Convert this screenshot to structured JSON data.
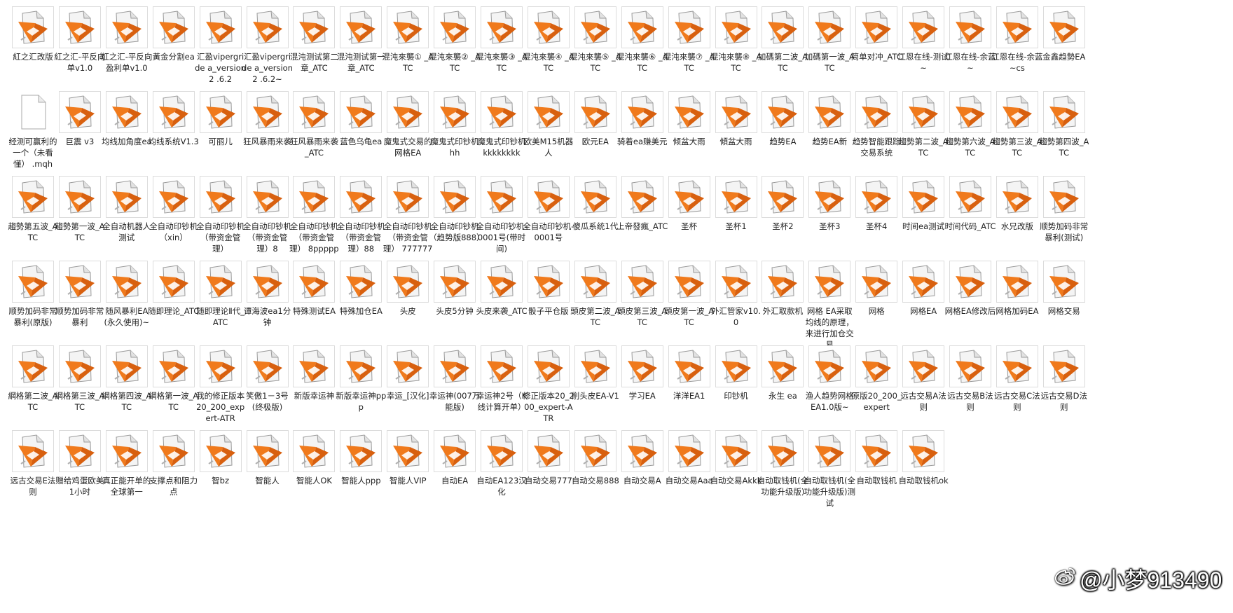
{
  "files": [
    {
      "name": "紅之汇改版",
      "icon": "mq4-file-icon"
    },
    {
      "name": "紅之汇-平反向单v1.0",
      "icon": "mq4-file-icon"
    },
    {
      "name": "紅之汇-平反向盈利单v1.0",
      "icon": "mq4-file-icon"
    },
    {
      "name": "黃金分割ea",
      "icon": "mq4-file-icon"
    },
    {
      "name": "汇盈vipergride a_version2 .6.2",
      "icon": "mq4-file-icon"
    },
    {
      "name": "汇盈vipergride a_version2 .6.2~",
      "icon": "mq4-file-icon"
    },
    {
      "name": "混沌测试第二章_ATC",
      "icon": "mq4-file-icon"
    },
    {
      "name": "混沌测试第一章_ATC",
      "icon": "mq4-file-icon"
    },
    {
      "name": "混沌來襲① _ATC",
      "icon": "mq4-file-icon"
    },
    {
      "name": "混沌來襲② _ATC",
      "icon": "mq4-file-icon"
    },
    {
      "name": "混沌來襲③ _ATC",
      "icon": "mq4-file-icon"
    },
    {
      "name": "混沌來襲④ _ATC",
      "icon": "mq4-file-icon"
    },
    {
      "name": "混沌來襲⑤ _ATC",
      "icon": "mq4-file-icon"
    },
    {
      "name": "混沌來襲⑥ _ATC",
      "icon": "mq4-file-icon"
    },
    {
      "name": "混沌來襲⑦ _ATC",
      "icon": "mq4-file-icon"
    },
    {
      "name": "混沌來襲⑧ _ATC",
      "icon": "mq4-file-icon"
    },
    {
      "name": "加碼第二波_ATC",
      "icon": "mq4-file-icon"
    },
    {
      "name": "加碼第一波_ATC",
      "icon": "mq4-file-icon"
    },
    {
      "name": "简单对冲_ATC",
      "icon": "mq4-file-icon"
    },
    {
      "name": "江恩在线-测试~",
      "icon": "mq4-file-icon"
    },
    {
      "name": "江恩在线-余蓝~",
      "icon": "mq4-file-icon"
    },
    {
      "name": "江恩在线-余蓝~cs",
      "icon": "mq4-file-icon"
    },
    {
      "name": "金鑫趋勢EA",
      "icon": "mq4-file-icon"
    },
    {
      "name": "经测可赢利的一个（未看懂） .mqh",
      "icon": "blank-file-icon"
    },
    {
      "name": "巨震 v3",
      "icon": "mq4-file-icon"
    },
    {
      "name": "均线加角度ea",
      "icon": "mq4-file-icon"
    },
    {
      "name": "均线系统V1.3",
      "icon": "mq4-file-icon"
    },
    {
      "name": "可丽儿",
      "icon": "mq4-file-icon"
    },
    {
      "name": "狂风暴雨来袭",
      "icon": "mq4-file-icon"
    },
    {
      "name": "狂风暴雨来袭_ATC",
      "icon": "mq4-file-icon"
    },
    {
      "name": "蓝色乌龟ea",
      "icon": "mq4-file-icon"
    },
    {
      "name": "魔鬼式交易的网格EA",
      "icon": "mq4-file-icon"
    },
    {
      "name": "魔鬼式印钞机hh",
      "icon": "mq4-file-icon"
    },
    {
      "name": "魔鬼式印钞机 kkkkkkkk",
      "icon": "mq4-file-icon"
    },
    {
      "name": "欧美M15机器人",
      "icon": "mq4-file-icon"
    },
    {
      "name": "欧元EA",
      "icon": "mq4-file-icon"
    },
    {
      "name": "骑着ea赚美元",
      "icon": "mq4-file-icon"
    },
    {
      "name": "倾盆大雨",
      "icon": "mq4-file-icon"
    },
    {
      "name": "傾盆大雨",
      "icon": "mq4-file-icon"
    },
    {
      "name": "趋势EA",
      "icon": "mq4-file-icon"
    },
    {
      "name": "趋势EA新",
      "icon": "mq4-file-icon"
    },
    {
      "name": "趋势智能跟踪交易系统",
      "icon": "mq4-file-icon"
    },
    {
      "name": "趨勢第二波_ATC",
      "icon": "mq4-file-icon"
    },
    {
      "name": "趨勢第六波_ATC",
      "icon": "mq4-file-icon"
    },
    {
      "name": "趨勢第三波_ATC",
      "icon": "mq4-file-icon"
    },
    {
      "name": "趨勢第四波_ATC",
      "icon": "mq4-file-icon"
    },
    {
      "name": "趨勢第五波_ATC",
      "icon": "mq4-file-icon"
    },
    {
      "name": "趨勢第一波_ATC",
      "icon": "mq4-file-icon"
    },
    {
      "name": "全自动机器人测试",
      "icon": "mq4-file-icon"
    },
    {
      "name": "全自动印钞机（xin）",
      "icon": "mq4-file-icon"
    },
    {
      "name": "全自动印钞机（带资金管理）",
      "icon": "mq4-file-icon"
    },
    {
      "name": "全自动印钞机（带资金管理）8",
      "icon": "mq4-file-icon"
    },
    {
      "name": "全自动印钞机（带资金管理） 8ppppp",
      "icon": "mq4-file-icon"
    },
    {
      "name": "全自动印钞机（带资金管理）88",
      "icon": "mq4-file-icon"
    },
    {
      "name": "全自动印钞机（带资金管理） 777777",
      "icon": "mq4-file-icon"
    },
    {
      "name": "全自动印钞机（趋势版888）",
      "icon": "mq4-file-icon"
    },
    {
      "name": "全自动印钞机-0001号(带时间)",
      "icon": "mq4-file-icon"
    },
    {
      "name": "全自动印钞机-0001号",
      "icon": "mq4-file-icon"
    },
    {
      "name": "傻瓜系统1代",
      "icon": "mq4-file-icon"
    },
    {
      "name": "上帝發瘋_ATC",
      "icon": "mq4-file-icon"
    },
    {
      "name": "圣杯",
      "icon": "mq4-file-icon"
    },
    {
      "name": "圣杯1",
      "icon": "mq4-file-icon"
    },
    {
      "name": "圣杯2",
      "icon": "mq4-file-icon"
    },
    {
      "name": "圣杯3",
      "icon": "mq4-file-icon"
    },
    {
      "name": "圣杯4",
      "icon": "mq4-file-icon"
    },
    {
      "name": "时间ea测试",
      "icon": "mq4-file-icon"
    },
    {
      "name": "时间代码_ATC",
      "icon": "mq4-file-icon"
    },
    {
      "name": "水兄改版",
      "icon": "mq4-file-icon"
    },
    {
      "name": "顺势加码非常暴利(测试)",
      "icon": "mq4-file-icon"
    },
    {
      "name": "顺势加码非常暴利(原版)",
      "icon": "mq4-file-icon"
    },
    {
      "name": "顺势加码非常暴利",
      "icon": "mq4-file-icon"
    },
    {
      "name": "随风暴利EA (永久使用)~",
      "icon": "mq4-file-icon"
    },
    {
      "name": "随即理论_ATC",
      "icon": "mq4-file-icon"
    },
    {
      "name": "随即理论Ⅱ代_ATC",
      "icon": "mq4-file-icon"
    },
    {
      "name": "谭海波ea1分钟",
      "icon": "mq4-file-icon"
    },
    {
      "name": "特殊测试EA",
      "icon": "mq4-file-icon"
    },
    {
      "name": "特殊加仓EA",
      "icon": "mq4-file-icon"
    },
    {
      "name": "头皮",
      "icon": "mq4-file-icon"
    },
    {
      "name": "头皮5分钟",
      "icon": "mq4-file-icon"
    },
    {
      "name": "头皮来袭_ATC",
      "icon": "mq4-file-icon"
    },
    {
      "name": "骰子平仓版",
      "icon": "mq4-file-icon"
    },
    {
      "name": "頭皮第二波_ATC",
      "icon": "mq4-file-icon"
    },
    {
      "name": "頭皮第三波_ATC",
      "icon": "mq4-file-icon"
    },
    {
      "name": "頭皮第一波_ATC",
      "icon": "mq4-file-icon"
    },
    {
      "name": "外汇管家v10.0",
      "icon": "mq4-file-icon"
    },
    {
      "name": "外汇取款机",
      "icon": "mq4-file-icon"
    },
    {
      "name": "网格 EA采取均线的原理，来进行加仓交易",
      "icon": "mq4-file-icon"
    },
    {
      "name": "网格",
      "icon": "mq4-file-icon"
    },
    {
      "name": "网格EA",
      "icon": "mq4-file-icon"
    },
    {
      "name": "网格EA修改后",
      "icon": "mq4-file-icon"
    },
    {
      "name": "网格加码EA",
      "icon": "mq4-file-icon"
    },
    {
      "name": "网格交易",
      "icon": "mq4-file-icon"
    },
    {
      "name": "網格第二波_ATC",
      "icon": "mq4-file-icon"
    },
    {
      "name": "網格第三波_ATC",
      "icon": "mq4-file-icon"
    },
    {
      "name": "網格第四波_ATC",
      "icon": "mq4-file-icon"
    },
    {
      "name": "網格第一波_ATC",
      "icon": "mq4-file-icon"
    },
    {
      "name": "我的修正版本20_200_expert-ATR",
      "icon": "mq4-file-icon"
    },
    {
      "name": "笑傲1－3号(终极版)",
      "icon": "mq4-file-icon"
    },
    {
      "name": "新版幸运神",
      "icon": "mq4-file-icon"
    },
    {
      "name": "新版幸运神ppp",
      "icon": "mq4-file-icon"
    },
    {
      "name": "幸运_[汉化]",
      "icon": "mq4-file-icon"
    },
    {
      "name": "幸运神(007万能版)",
      "icon": "mq4-file-icon"
    },
    {
      "name": "幸运神2号（K线计算开单）",
      "icon": "mq4-file-icon"
    },
    {
      "name": "修正版本20_200_expert-ATR",
      "icon": "mq4-file-icon"
    },
    {
      "name": "削头皮EA-V1",
      "icon": "mq4-file-icon"
    },
    {
      "name": "学习EA",
      "icon": "mq4-file-icon"
    },
    {
      "name": "洋洋EA1",
      "icon": "mq4-file-icon"
    },
    {
      "name": "印钞机",
      "icon": "mq4-file-icon"
    },
    {
      "name": "永生  ea",
      "icon": "mq4-file-icon"
    },
    {
      "name": "渔人趋势网格EA1.0版~",
      "icon": "mq4-file-icon"
    },
    {
      "name": "原版20_200_expert",
      "icon": "mq4-file-icon"
    },
    {
      "name": "远古交易A法则",
      "icon": "mq4-file-icon"
    },
    {
      "name": "远古交易B法则",
      "icon": "mq4-file-icon"
    },
    {
      "name": "远古交易C法则",
      "icon": "mq4-file-icon"
    },
    {
      "name": "远古交易D法则",
      "icon": "mq4-file-icon"
    },
    {
      "name": "远古交易E法则",
      "icon": "mq4-file-icon"
    },
    {
      "name": "赠给鸡蛋欧美1小时",
      "icon": "mq4-file-icon"
    },
    {
      "name": "真正能开单的全球第一",
      "icon": "mq4-file-icon"
    },
    {
      "name": "支撑点和阻力点",
      "icon": "mq4-file-icon"
    },
    {
      "name": "智bz",
      "icon": "mq4-file-icon"
    },
    {
      "name": "智能人",
      "icon": "mq4-file-icon"
    },
    {
      "name": "智能人OK",
      "icon": "mq4-file-icon"
    },
    {
      "name": "智能人ppp",
      "icon": "mq4-file-icon"
    },
    {
      "name": "智能人VIP",
      "icon": "mq4-file-icon"
    },
    {
      "name": "自动EA",
      "icon": "mq4-file-icon"
    },
    {
      "name": "自动EA123汉化",
      "icon": "mq4-file-icon"
    },
    {
      "name": "自动交易777",
      "icon": "mq4-file-icon"
    },
    {
      "name": "自动交易888",
      "icon": "mq4-file-icon"
    },
    {
      "name": "自动交易A",
      "icon": "mq4-file-icon"
    },
    {
      "name": "自动交易Aaa",
      "icon": "mq4-file-icon"
    },
    {
      "name": "自动交易Akkk",
      "icon": "mq4-file-icon"
    },
    {
      "name": "自动取钱机(全功能升级版)",
      "icon": "mq4-file-icon"
    },
    {
      "name": "自动取钱机(全功能升级版)测试",
      "icon": "mq4-file-icon"
    },
    {
      "name": "自动取钱机",
      "icon": "mq4-file-icon"
    },
    {
      "name": "自动取钱机ok",
      "icon": "mq4-file-icon"
    }
  ],
  "watermark": {
    "text": "@小梦913490",
    "icon": "weibo-logo-icon"
  },
  "colors": {
    "icon_orange": "#f07a1c",
    "icon_paper": "#f4f4f4",
    "background": "#ffffff",
    "label": "#222222"
  }
}
